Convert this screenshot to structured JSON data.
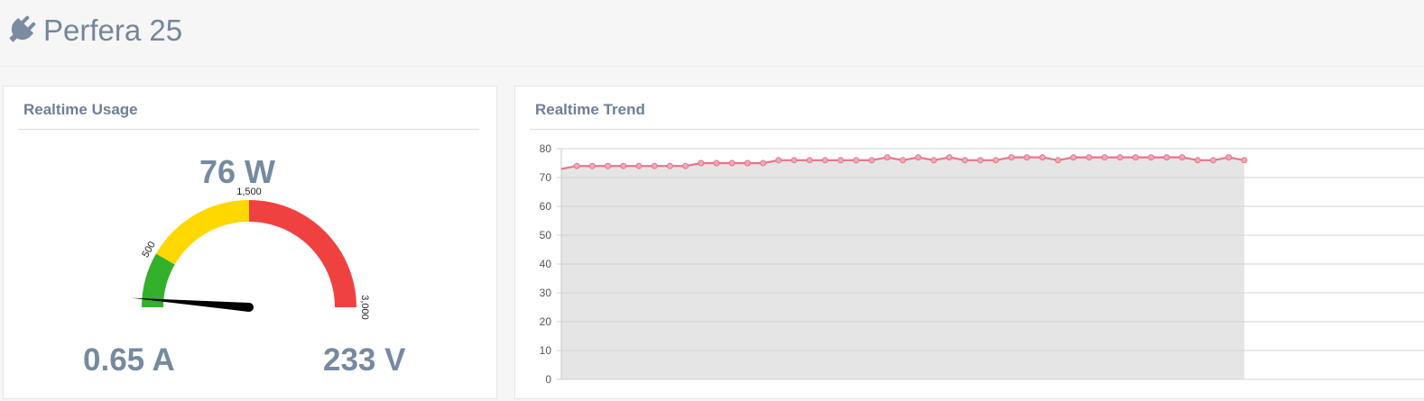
{
  "app": {
    "title": "Perfera 25",
    "icon": "plug-icon",
    "accent": "#75869b"
  },
  "usage_panel": {
    "heading": "Realtime Usage",
    "power": "76 W",
    "current": "0.65 A",
    "voltage": "233 V",
    "gauge": {
      "min": 0,
      "max": 3000,
      "value": 76,
      "tick_labels": [
        "500",
        "1,500",
        "3,000"
      ],
      "bands": [
        {
          "from": 0,
          "to": 500,
          "color": "#33b02c"
        },
        {
          "from": 500,
          "to": 1500,
          "color": "#ffd800"
        },
        {
          "from": 1500,
          "to": 3000,
          "color": "#f04141"
        }
      ]
    }
  },
  "trend_panel": {
    "heading": "Realtime Trend"
  },
  "chart_data": {
    "type": "area",
    "title": "",
    "xlabel": "",
    "ylabel": "",
    "ylim": [
      0,
      80
    ],
    "yticks": [
      "0",
      "10",
      "20",
      "30",
      "40",
      "50",
      "60",
      "70",
      "80"
    ],
    "grid": true,
    "legend": "none",
    "line_color": "#e8738a",
    "fill_color": "#e5e5e5",
    "series": [
      {
        "values": [
          73,
          74,
          74,
          74,
          74,
          74,
          74,
          74,
          74,
          75,
          75,
          75,
          75,
          75,
          76,
          76,
          76,
          76,
          76,
          76,
          76,
          77,
          76,
          77,
          76,
          77,
          76,
          76,
          76,
          77,
          77,
          77,
          76,
          77,
          77,
          77,
          77,
          77,
          77,
          77,
          77,
          76,
          76,
          77,
          76
        ]
      }
    ]
  }
}
